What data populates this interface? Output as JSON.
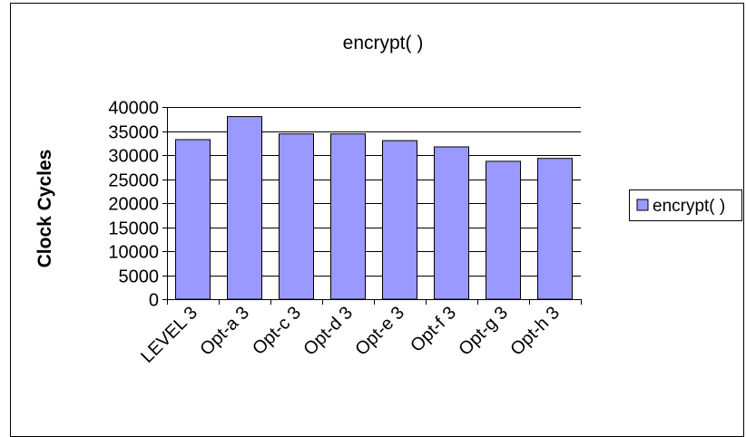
{
  "chart_data": {
    "type": "bar",
    "title": "encrypt( )",
    "xlabel": "",
    "ylabel": "Clock Cycles",
    "categories": [
      "LEVEL 3",
      "Opt-a 3",
      "Opt-c 3",
      "Opt-d 3",
      "Opt-e 3",
      "Opt-f 3",
      "Opt-g 3",
      "Opt-h 3"
    ],
    "series": [
      {
        "name": "encrypt( )",
        "values": [
          33200,
          38000,
          34400,
          34400,
          33000,
          31700,
          28700,
          29300
        ]
      }
    ],
    "ylim": [
      0,
      40000
    ],
    "yticks": [
      0,
      5000,
      10000,
      15000,
      20000,
      25000,
      30000,
      35000,
      40000
    ],
    "grid": true,
    "legend": "right",
    "colors": {
      "bar": "#9999ff",
      "bar_stroke": "#000000",
      "grid": "#000000"
    }
  }
}
